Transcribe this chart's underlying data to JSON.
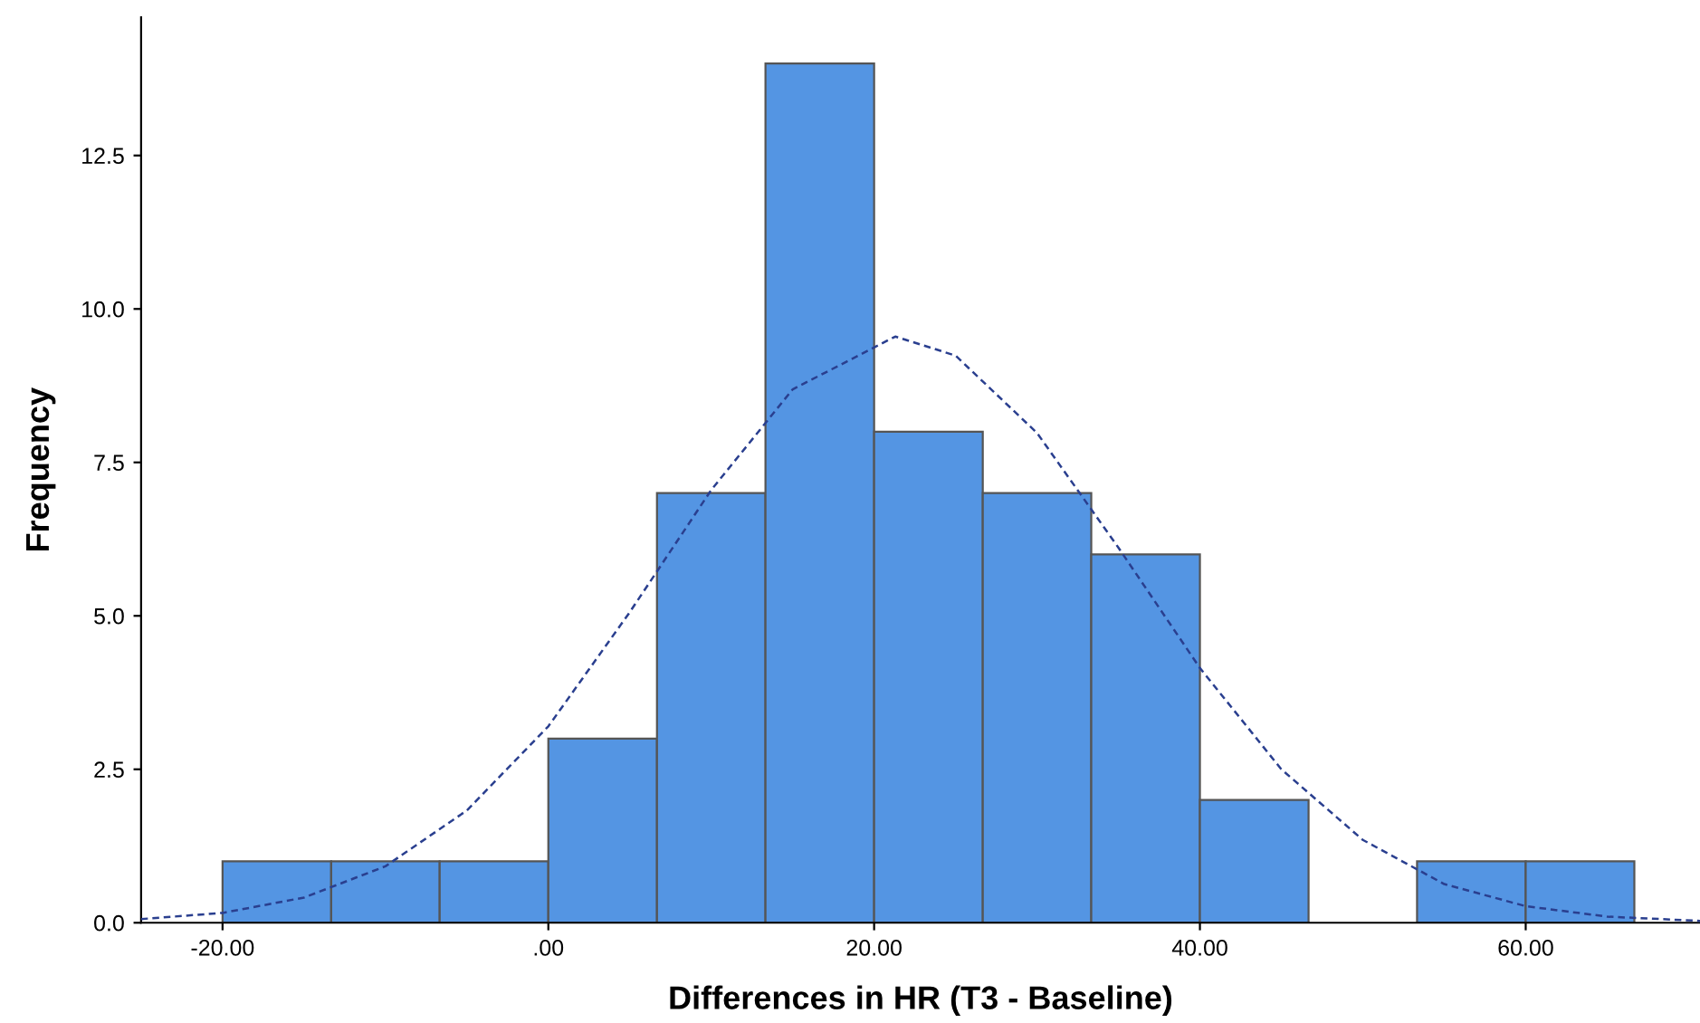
{
  "chart_data": {
    "type": "histogram",
    "xlabel": "Differences in HR (T3 - Baseline)",
    "ylabel": "Frequency",
    "xlim": [
      -25,
      70.7
    ],
    "ylim": [
      0,
      14.75
    ],
    "xticks": [
      {
        "value": -20,
        "label": "-20.00"
      },
      {
        "value": 0,
        "label": ".00"
      },
      {
        "value": 20,
        "label": "20.00"
      },
      {
        "value": 40,
        "label": "40.00"
      },
      {
        "value": 60,
        "label": "60.00"
      }
    ],
    "yticks": [
      {
        "value": 0,
        "label": "0.0"
      },
      {
        "value": 2.5,
        "label": "2.5"
      },
      {
        "value": 5,
        "label": "5.0"
      },
      {
        "value": 7.5,
        "label": "7.5"
      },
      {
        "value": 10,
        "label": "10.0"
      },
      {
        "value": 12.5,
        "label": "12.5"
      }
    ],
    "grid": false,
    "legend": false,
    "series": [
      {
        "color": "#5495e3",
        "bins": [
          -20,
          -13.33,
          -6.67,
          0,
          6.67,
          13.33,
          20,
          26.67,
          33.33,
          40,
          46.67,
          53.33,
          60,
          66.67
        ],
        "values": [
          1,
          1,
          1,
          3,
          7,
          14,
          8,
          7,
          6,
          2,
          0,
          1,
          1
        ]
      },
      {
        "type": "line",
        "color": "#2a3f8f",
        "line_style": "dashed",
        "marker": "none",
        "x": [
          -25,
          -20,
          -15,
          -10,
          -5,
          0,
          5,
          10,
          15,
          21.3,
          25,
          30,
          35,
          40,
          45,
          50,
          55,
          60,
          65,
          70.7
        ],
        "values": [
          0.06,
          0.16,
          0.41,
          0.92,
          1.83,
          3.2,
          5.06,
          7.05,
          8.69,
          9.55,
          9.24,
          7.98,
          6.11,
          4.15,
          2.5,
          1.35,
          0.63,
          0.27,
          0.1,
          0.03
        ]
      }
    ]
  }
}
